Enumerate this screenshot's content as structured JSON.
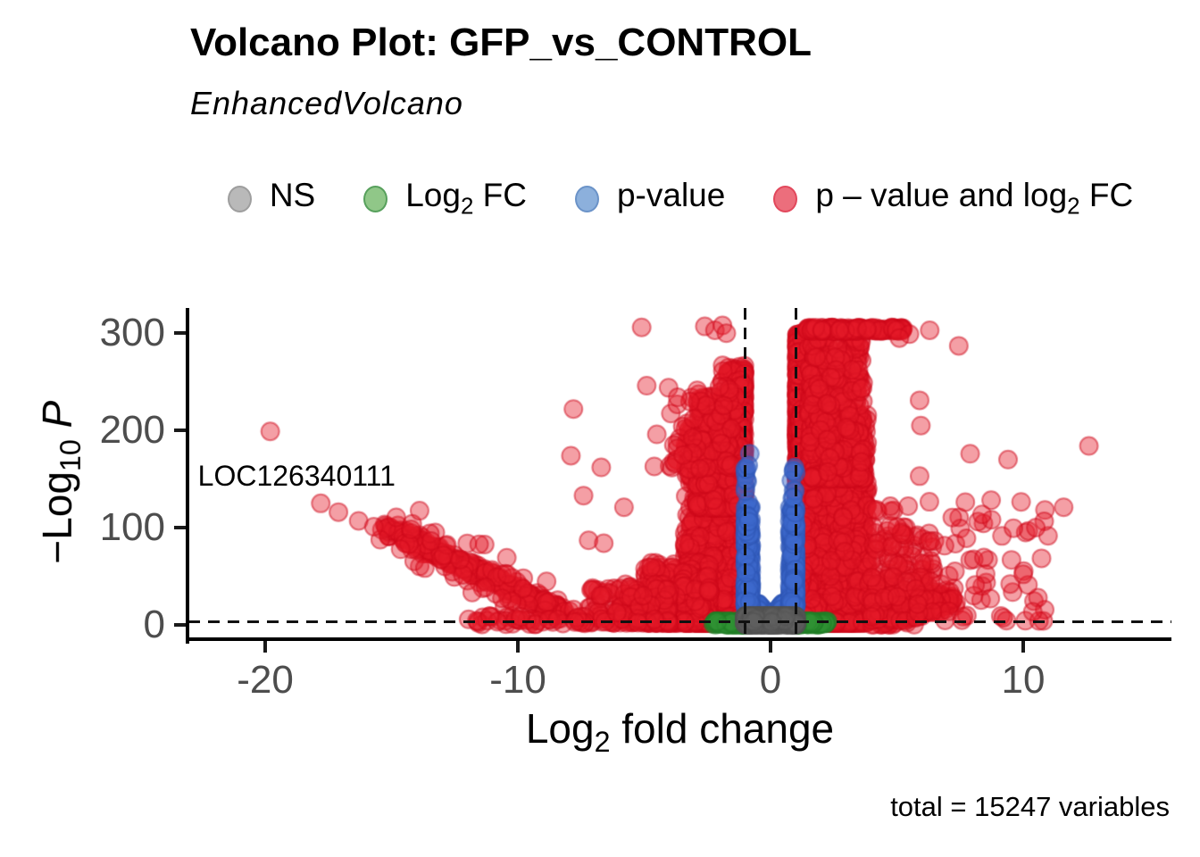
{
  "title": "Volcano Plot: GFP_vs_CONTROL",
  "subtitle": "EnhancedVolcano",
  "caption": "total = 15247 variables",
  "gene_label": "LOC126340111",
  "legend": {
    "items": [
      {
        "pre": "NS",
        "fill": "#b9b9b9",
        "stroke": "#9e9e9e"
      },
      {
        "pre": "Log",
        "sub": "2",
        "post": " FC",
        "fill": "#90c788",
        "stroke": "#57a05c"
      },
      {
        "pre": "p-value",
        "fill": "#8cb0dc",
        "stroke": "#6b93c8"
      },
      {
        "pre": "p – value and log",
        "sub": "2",
        "post": " FC",
        "fill": "#ec6e7c",
        "stroke": "#e2485c"
      }
    ]
  },
  "xaxis": {
    "label": {
      "pre": "Log",
      "sub": "2",
      "post": " fold change"
    },
    "ticks": [
      {
        "value": -20,
        "label": "-20"
      },
      {
        "value": -10,
        "label": "-10"
      },
      {
        "value": 0,
        "label": "0"
      },
      {
        "value": 10,
        "label": "10"
      }
    ]
  },
  "yaxis": {
    "label": {
      "pre": "−Log",
      "sub": "10",
      "post": "P"
    },
    "ticks": [
      {
        "value": 0,
        "label": "0"
      },
      {
        "value": 100,
        "label": "100"
      },
      {
        "value": 200,
        "label": "200"
      },
      {
        "value": 300,
        "label": "300"
      }
    ]
  },
  "chart_data": {
    "type": "scatter",
    "title": "Volcano Plot: GFP_vs_CONTROL",
    "subtitle": "EnhancedVolcano",
    "caption": "total = 15247 variables",
    "xlabel": "Log2 fold change",
    "ylabel": "-Log10 P",
    "xlim": [
      -23,
      15.8
    ],
    "ylim": [
      -15,
      326
    ],
    "x_ticks": [
      -20,
      -10,
      0,
      10
    ],
    "y_ticks": [
      0,
      100,
      200,
      300
    ],
    "grid": false,
    "legend_position": "top",
    "total_variables": 15247,
    "cutoffs": {
      "log2fc": [
        -1,
        1
      ],
      "pvalue_line_neglog10": 3
    },
    "categories": {
      "ns": {
        "label": "NS",
        "fill": "rgba(96,96,96,0.5)",
        "stroke": "rgba(82,82,82,0.55)"
      },
      "fc": {
        "label": "Log2 FC",
        "fill": "rgba(48,146,52,0.5)",
        "stroke": "rgba(32,126,38,0.55)"
      },
      "p": {
        "label": "p-value",
        "fill": "rgba(62,105,205,0.5)",
        "stroke": "rgba(48,88,182,0.55)"
      },
      "fcp": {
        "label": "p-value and log2 FC",
        "fill": "rgba(228,26,40,0.42)",
        "stroke": "rgba(206,8,26,0.5)"
      }
    },
    "labeled_points": [
      {
        "name": "LOC126340111",
        "x": -19.8,
        "y": 199
      }
    ],
    "draw_order": [
      "fcp",
      "fc",
      "p",
      "ns"
    ],
    "generation": {
      "seed": 42,
      "point_radius": 10,
      "clusters": [
        {
          "kind": "pband",
          "cls": "fcp",
          "n": 2200,
          "x0": 1.03,
          "xw": 1.1,
          "xpow": 1.8,
          "y0": 2,
          "yh": 300,
          "ypow": 2.6
        },
        {
          "kind": "pband",
          "cls": "fcp",
          "n": 2300,
          "x0": 1.15,
          "xw": 2.7,
          "xpow": 1.5,
          "y0": 2,
          "yh": 215,
          "ypow": 2.2
        },
        {
          "kind": "pband",
          "cls": "fcp",
          "n": 500,
          "x0": 1.5,
          "xw": 2.2,
          "xpow": 1.0,
          "y0": 150,
          "yh": 145,
          "ypow": 1.5
        },
        {
          "kind": "line",
          "cls": "fcp",
          "n": 260,
          "from": [
            4.2,
            6
          ],
          "to": [
            7.1,
            26
          ],
          "jx": 0.25,
          "jy": 5
        },
        {
          "kind": "pband",
          "cls": "fcp",
          "n": 120,
          "x0": 3.8,
          "xw": 2.7,
          "xpow": 1.0,
          "y0": 25,
          "yh": 75,
          "ypow": 2
        },
        {
          "kind": "rect",
          "cls": "fcp",
          "n": 150,
          "x": [
            1.45,
            5.25
          ],
          "y": [
            302,
            306
          ]
        },
        {
          "kind": "pband",
          "cls": "fcp",
          "n": 110,
          "x0": 4,
          "xw": 7,
          "xpow": 2.0,
          "y0": 4,
          "yh": 125,
          "ypow": 1.6
        },
        {
          "kind": "pband",
          "cls": "fcp",
          "n": 1500,
          "x0": -1.03,
          "xw": -0.9,
          "xpow": 1.8,
          "y0": 2,
          "yh": 265,
          "ypow": 2.8
        },
        {
          "kind": "pband",
          "cls": "fcp",
          "n": 1450,
          "x0": -1.1,
          "xw": -2.3,
          "xpow": 1.5,
          "y0": 2,
          "yh": 205,
          "ypow": 2.4
        },
        {
          "kind": "pband",
          "cls": "fcp",
          "n": 250,
          "x0": -1.25,
          "xw": -1.7,
          "xpow": 1.0,
          "y0": 120,
          "yh": 115,
          "ypow": 1.8
        },
        {
          "kind": "pband",
          "cls": "fcp",
          "n": 500,
          "x0": -2.4,
          "xw": -2.6,
          "xpow": 1.3,
          "y0": 2,
          "yh": 62,
          "ypow": 2
        },
        {
          "kind": "pband",
          "cls": "fcp",
          "n": 200,
          "x0": -4,
          "xw": -3.2,
          "xpow": 1.5,
          "y0": 2,
          "yh": 40,
          "ypow": 2
        },
        {
          "kind": "line",
          "cls": "fcp",
          "n": 340,
          "from": [
            -8.3,
            13
          ],
          "to": [
            -15.2,
            100
          ],
          "jx": 0.16,
          "jy": 3
        },
        {
          "kind": "line",
          "cls": "fcp",
          "n": 80,
          "from": [
            -8.0,
            14
          ],
          "to": [
            -15.0,
            95
          ],
          "jx": 0.5,
          "jy": 14
        },
        {
          "kind": "pband",
          "cls": "fcp",
          "n": 70,
          "x0": -1.5,
          "xw": -2.6,
          "xpow": 1.0,
          "y0": 160,
          "yh": 85,
          "ypow": 1.5
        },
        {
          "kind": "rect",
          "cls": "fcp",
          "n": 45,
          "x": [
            -12,
            -7
          ],
          "y": [
            0.5,
            9
          ]
        },
        {
          "kind": "points",
          "cls": "fcp",
          "pts": [
            [
              -19.8,
              199
            ],
            [
              -17.8,
              125
            ],
            [
              -17.1,
              116
            ],
            [
              -16.3,
              107
            ],
            [
              -15.7,
              101
            ],
            [
              -7.8,
              222
            ],
            [
              -7.9,
              174
            ],
            [
              -6.7,
              162
            ],
            [
              -7.4,
              133
            ],
            [
              -4.5,
              196
            ],
            [
              -4.6,
              163
            ],
            [
              -5.8,
              121
            ],
            [
              -4.9,
              246
            ],
            [
              -7.2,
              87
            ],
            [
              -6.6,
              84
            ],
            [
              -5.1,
              306
            ],
            [
              -2.6,
              307
            ],
            [
              -2.2,
              303
            ],
            [
              -1.9,
              308
            ],
            [
              -1.75,
              300
            ],
            [
              7.45,
              287
            ],
            [
              5.9,
              231
            ],
            [
              5.95,
              205
            ],
            [
              7.9,
              176
            ],
            [
              9.4,
              170
            ],
            [
              12.6,
              184
            ],
            [
              5.9,
              153
            ],
            [
              11.6,
              121
            ],
            [
              10.5,
              100
            ],
            [
              10.0,
              52
            ],
            [
              8.1,
              41
            ],
            [
              8.7,
              27
            ],
            [
              7.3,
              55
            ],
            [
              6.3,
              303
            ],
            [
              5.5,
              299
            ],
            [
              5.1,
              295
            ]
          ]
        },
        {
          "kind": "vslab",
          "cls": "p",
          "n": 420,
          "x": 0.98,
          "y0": 8,
          "yh": 15,
          "wedge": 0.5
        },
        {
          "kind": "cols",
          "cls": "p",
          "n": 480,
          "inner": 0.76,
          "outer": 1.0,
          "y0": 20,
          "yh": 102,
          "ypow": 2.2
        },
        {
          "kind": "cols",
          "cls": "p",
          "n": 26,
          "inner": 0.82,
          "outer": 1.0,
          "y0": 100,
          "yh": 68,
          "ypow": 1
        },
        {
          "kind": "points",
          "cls": "p",
          "pts": [
            [
              -0.82,
              176
            ],
            [
              -0.88,
              164
            ],
            [
              0.9,
              131
            ]
          ]
        },
        {
          "kind": "band",
          "cls": "ns",
          "n": 1300,
          "x": [
            -1.02,
            1.02
          ],
          "y0": 0.3,
          "yh": 9,
          "ypow": 1.25
        },
        {
          "kind": "sides",
          "cls": "fc",
          "n": 360,
          "xin": 1.02,
          "xw": 1.25,
          "xpow": 2.3,
          "y0": 0.2,
          "yh": 3.6
        }
      ]
    }
  }
}
